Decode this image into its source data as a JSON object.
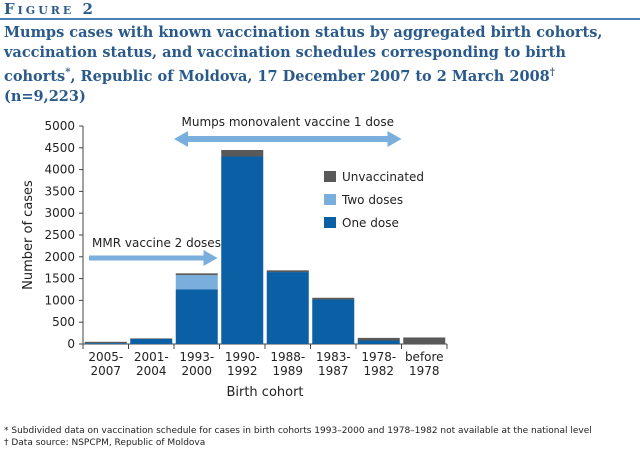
{
  "figure": {
    "label": "Figure 2",
    "title_main": "Mumps cases with known vaccination status by aggregated birth cohorts, vaccination status, and vaccination schedules corresponding to birth cohorts",
    "title_mark1": "*",
    "title_mid": ", Republic of Moldova, 17 December 2007 to 2 March 2008",
    "title_mark2": "†",
    "title_end": " (n=9,223)"
  },
  "footnotes": {
    "note1": "* Subdivided data on vaccination schedule for cases in birth cohorts 1993–2000 and 1978–1982 not available at the national level",
    "note2": "† Data source: NSPCPM, Republic of Moldova"
  },
  "chart_data": {
    "type": "bar",
    "stacked": true,
    "xlabel": "Birth cohort",
    "ylabel": "Number of cases",
    "ylim": [
      0,
      5000
    ],
    "yticks": [
      "0",
      "500",
      "1000",
      "1500",
      "2000",
      "2500",
      "3000",
      "3500",
      "4000",
      "4500",
      "5000"
    ],
    "categories": [
      [
        "2005-",
        "2007"
      ],
      [
        "2001-",
        "2004"
      ],
      [
        "1993-",
        "2000"
      ],
      [
        "1990-",
        "1992"
      ],
      [
        "1988-",
        "1989"
      ],
      [
        "1983-",
        "1987"
      ],
      [
        "1978-",
        "1982"
      ],
      [
        "before",
        "1978"
      ]
    ],
    "series": [
      {
        "name": "One dose",
        "color": "#0b5fa5",
        "values": [
          20,
          120,
          1250,
          4300,
          1650,
          1020,
          80,
          0
        ]
      },
      {
        "name": "Two doses",
        "color": "#7aaedc",
        "values": [
          0,
          0,
          330,
          0,
          0,
          0,
          0,
          0
        ]
      },
      {
        "name": "Unvaccinated",
        "color": "#595959",
        "values": [
          30,
          10,
          40,
          150,
          40,
          40,
          60,
          150
        ]
      }
    ],
    "legend_placement": "right",
    "annotations": [
      {
        "text": "Mumps monovalent vaccine 1 dose",
        "type": "double-arrow",
        "from": 1.5,
        "to": 6.5
      },
      {
        "text": "MMR vaccine 2 doses",
        "type": "arrow",
        "from": -0.5,
        "to": 2.5
      }
    ]
  }
}
